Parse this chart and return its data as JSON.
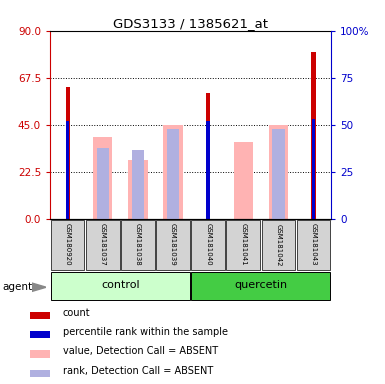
{
  "title": "GDS3133 / 1385621_at",
  "samples": [
    "GSM180920",
    "GSM181037",
    "GSM181038",
    "GSM181039",
    "GSM181040",
    "GSM181041",
    "GSM181042",
    "GSM181043"
  ],
  "groups": [
    "control",
    "control",
    "control",
    "control",
    "quercetin",
    "quercetin",
    "quercetin",
    "quercetin"
  ],
  "red_bars": [
    63,
    0,
    0,
    0,
    60,
    0,
    0,
    80
  ],
  "pink_bars": [
    0,
    39,
    28,
    45,
    0,
    37,
    45,
    0
  ],
  "blue_bars": [
    47,
    0,
    0,
    0,
    47,
    0,
    0,
    48
  ],
  "lavender_bars": [
    0,
    34,
    33,
    43,
    0,
    0,
    43,
    0
  ],
  "ylim_left": [
    0,
    90
  ],
  "ylim_right": [
    0,
    100
  ],
  "yticks_left": [
    0,
    22.5,
    45,
    67.5,
    90
  ],
  "yticks_right": [
    0,
    25,
    50,
    75,
    100
  ],
  "ylabel_left_color": "#cc0000",
  "ylabel_right_color": "#0000cc",
  "red_color": "#cc0000",
  "pink_color": "#ffb3b3",
  "blue_color": "#0000cc",
  "lavender_color": "#b0b0e0",
  "control_bg_light": "#ccffcc",
  "quercetin_bg_green": "#44cc44",
  "sample_bg": "#d3d3d3",
  "agent_label": "agent",
  "group_labels": [
    "control",
    "quercetin"
  ]
}
